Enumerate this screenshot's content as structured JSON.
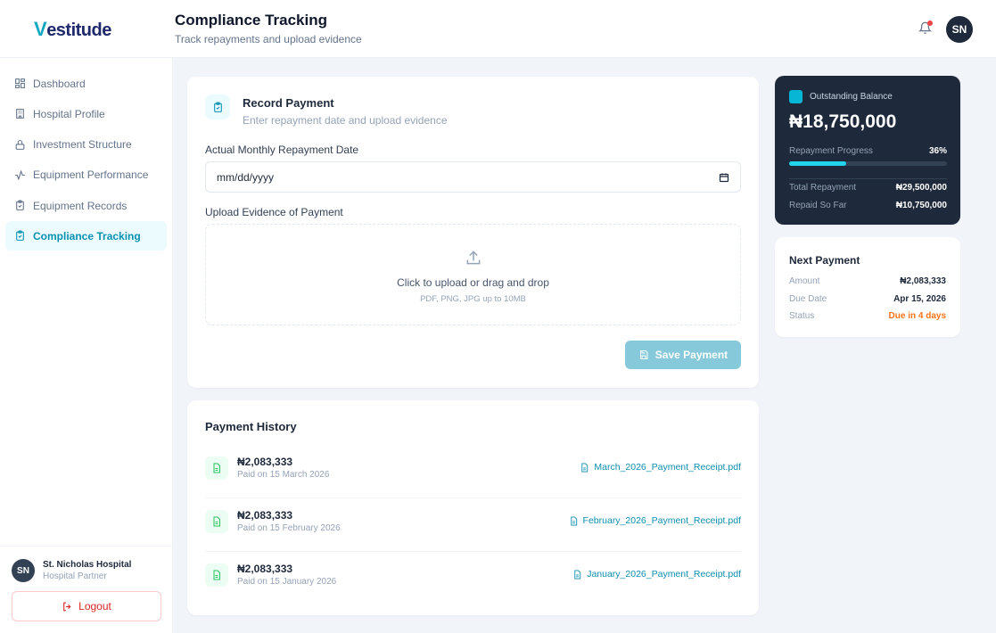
{
  "brand": {
    "name": "Vestitude"
  },
  "header": {
    "title": "Compliance Tracking",
    "subtitle": "Track repayments and upload evidence",
    "avatar": "SN",
    "notification_icon": "bell-icon"
  },
  "sidebar": {
    "items": [
      {
        "label": "Dashboard",
        "icon": "grid-icon"
      },
      {
        "label": "Hospital Profile",
        "icon": "building-icon"
      },
      {
        "label": "Investment Structure",
        "icon": "lock-icon"
      },
      {
        "label": "Equipment Performance",
        "icon": "activity-icon"
      },
      {
        "label": "Equipment Records",
        "icon": "clipboard-icon"
      },
      {
        "label": "Compliance Tracking",
        "icon": "clipboard-check-icon",
        "active": true
      }
    ],
    "user": {
      "initials": "SN",
      "name": "St. Nicholas Hospital",
      "role": "Hospital Partner"
    },
    "logout": "Logout"
  },
  "record": {
    "title": "Record Payment",
    "subtitle": "Enter repayment date and upload evidence",
    "date_label": "Actual Monthly Repayment Date",
    "date_placeholder": "mm/dd/yyyy",
    "upload_label": "Upload Evidence of Payment",
    "upload_text": "Click to upload or drag and drop",
    "upload_hint": "PDF, PNG, JPG up to 10MB",
    "save": "Save Payment"
  },
  "history": {
    "title": "Payment History",
    "rows": [
      {
        "amount": "₦2,083,333",
        "date": "Paid on 15 March 2026",
        "file": "March_2026_Payment_Receipt.pdf"
      },
      {
        "amount": "₦2,083,333",
        "date": "Paid on 15 February 2026",
        "file": "February_2026_Payment_Receipt.pdf"
      },
      {
        "amount": "₦2,083,333",
        "date": "Paid on 15 January 2026",
        "file": "January_2026_Payment_Receipt.pdf"
      }
    ]
  },
  "balance": {
    "label": "Outstanding Balance",
    "value": "₦18,750,000",
    "progress_label": "Repayment Progress",
    "progress_text": "36%",
    "progress": 36,
    "total_label": "Total Repayment",
    "total": "₦29,500,000",
    "repaid_label": "Repaid So Far",
    "repaid": "₦10,750,000"
  },
  "next": {
    "title": "Next Payment",
    "amount_label": "Amount",
    "amount": "₦2,083,333",
    "due_label": "Due Date",
    "due": "Apr 15, 2026",
    "status_label": "Status",
    "status": "Due in 4 days"
  },
  "colors": {
    "accent": "#0891b2",
    "dark_card": "#1e293b",
    "progress": "#22d3ee",
    "warning": "#f97316",
    "danger": "#dc2626"
  }
}
